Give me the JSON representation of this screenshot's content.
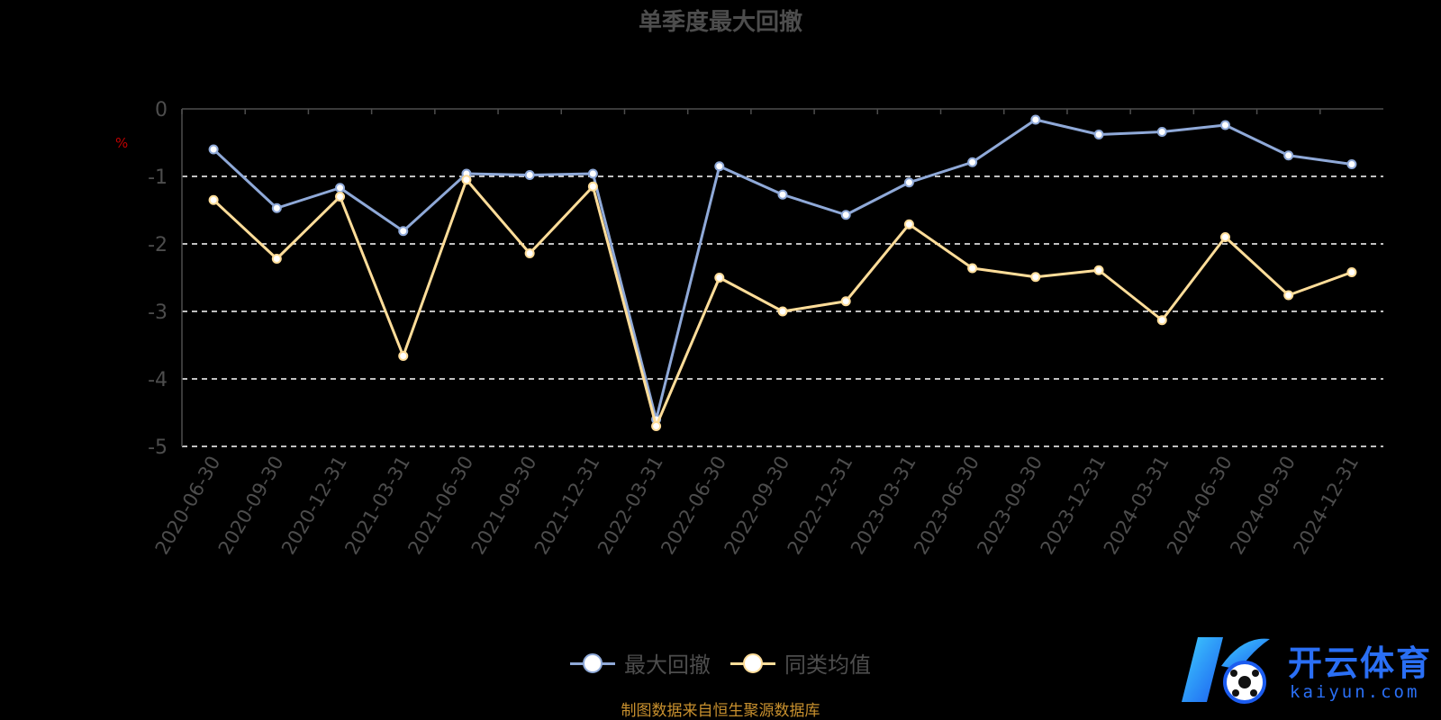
{
  "chart_data": {
    "type": "line",
    "title": "单季度最大回撤",
    "ylabel": "%",
    "ylim": [
      -5,
      0
    ],
    "yticks": [
      0,
      -1,
      -2,
      -3,
      -4,
      -5
    ],
    "grid": true,
    "legend_position": "bottom",
    "categories": [
      "2020-06-30",
      "2020-09-30",
      "2020-12-31",
      "2021-03-31",
      "2021-06-30",
      "2021-09-30",
      "2021-12-31",
      "2022-03-31",
      "2022-06-30",
      "2022-09-30",
      "2022-12-31",
      "2023-03-31",
      "2023-06-30",
      "2023-09-30",
      "2023-12-31",
      "2024-03-31",
      "2024-06-30",
      "2024-09-30",
      "2024-12-31"
    ],
    "series": [
      {
        "name": "最大回撤",
        "color": "#8fa9d8",
        "values": [
          -0.6,
          -1.47,
          -1.17,
          -1.81,
          -0.96,
          -0.98,
          -0.96,
          -4.6,
          -0.85,
          -1.27,
          -1.57,
          -1.09,
          -0.79,
          -0.16,
          -0.38,
          -0.34,
          -0.24,
          -0.69,
          -0.82
        ]
      },
      {
        "name": "同类均值",
        "color": "#ffdd99",
        "values": [
          -1.35,
          -2.22,
          -1.3,
          -3.66,
          -1.05,
          -2.14,
          -1.15,
          -4.7,
          -2.5,
          -3.0,
          -2.85,
          -1.71,
          -2.36,
          -2.49,
          -2.39,
          -3.13,
          -1.9,
          -2.76,
          -2.42
        ]
      }
    ]
  },
  "footer": {
    "source": "制图数据来自恒生聚源数据库"
  },
  "watermark": {
    "brand": "开云体育",
    "domain": "kaiyun.com",
    "logo_letter": "K"
  }
}
